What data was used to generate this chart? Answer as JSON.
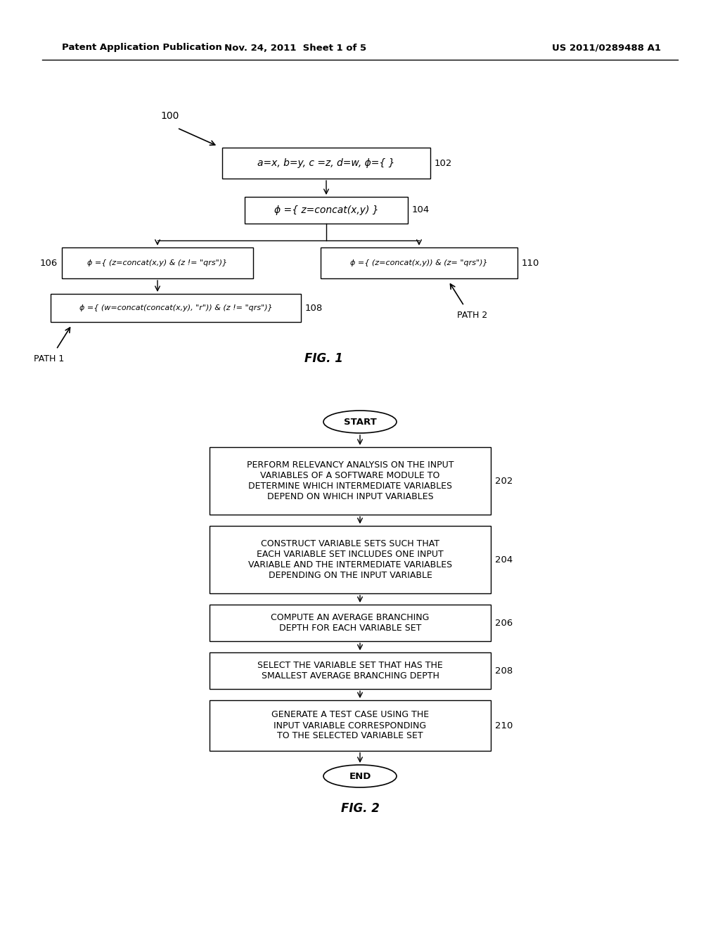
{
  "bg_color": "#ffffff",
  "header_left": "Patent Application Publication",
  "header_mid": "Nov. 24, 2011  Sheet 1 of 5",
  "header_right": "US 2011/0289488 A1",
  "fig1_label": "100",
  "fig1_caption": "FIG. 1",
  "box102_text": "a=x, b=y, c =z, d=w, ϕ={ }",
  "box102_label": "102",
  "box104_text": "ϕ ={ z=concat(x,y) }",
  "box104_label": "104",
  "box106_text": "ϕ ={ (z=concat(x,y) & (z != \"qrs\")}",
  "box106_label": "106",
  "box108_text": "ϕ ={ (w=concat(concat(x,y), \"r\")) & (z != \"qrs\")}",
  "box108_label": "108",
  "box110_text": "ϕ ={ (z=concat(x,y)) & (z= \"qrs\")}",
  "box110_label": "110",
  "path1_text": "PATH 1",
  "path2_text": "PATH 2",
  "fig2_caption": "FIG. 2",
  "start_text": "START",
  "end_text": "END",
  "box202_text": "PERFORM RELEVANCY ANALYSIS ON THE INPUT\nVARIABLES OF A SOFTWARE MODULE TO\nDETERMINE WHICH INTERMEDIATE VARIABLES\nDEPEND ON WHICH INPUT VARIABLES",
  "box202_label": "202",
  "box204_text": "CONSTRUCT VARIABLE SETS SUCH THAT\nEACH VARIABLE SET INCLUDES ONE INPUT\nVARIABLE AND THE INTERMEDIATE VARIABLES\nDEPENDING ON THE INPUT VARIABLE",
  "box204_label": "204",
  "box206_text": "COMPUTE AN AVERAGE BRANCHING\nDEPTH FOR EACH VARIABLE SET",
  "box206_label": "206",
  "box208_text": "SELECT THE VARIABLE SET THAT HAS THE\nSMALLEST AVERAGE BRANCHING DEPTH",
  "box208_label": "208",
  "box210_text": "GENERATE A TEST CASE USING THE\nINPUT VARIABLE CORRESPONDING\nTO THE SELECTED VARIABLE SET",
  "box210_label": "210"
}
